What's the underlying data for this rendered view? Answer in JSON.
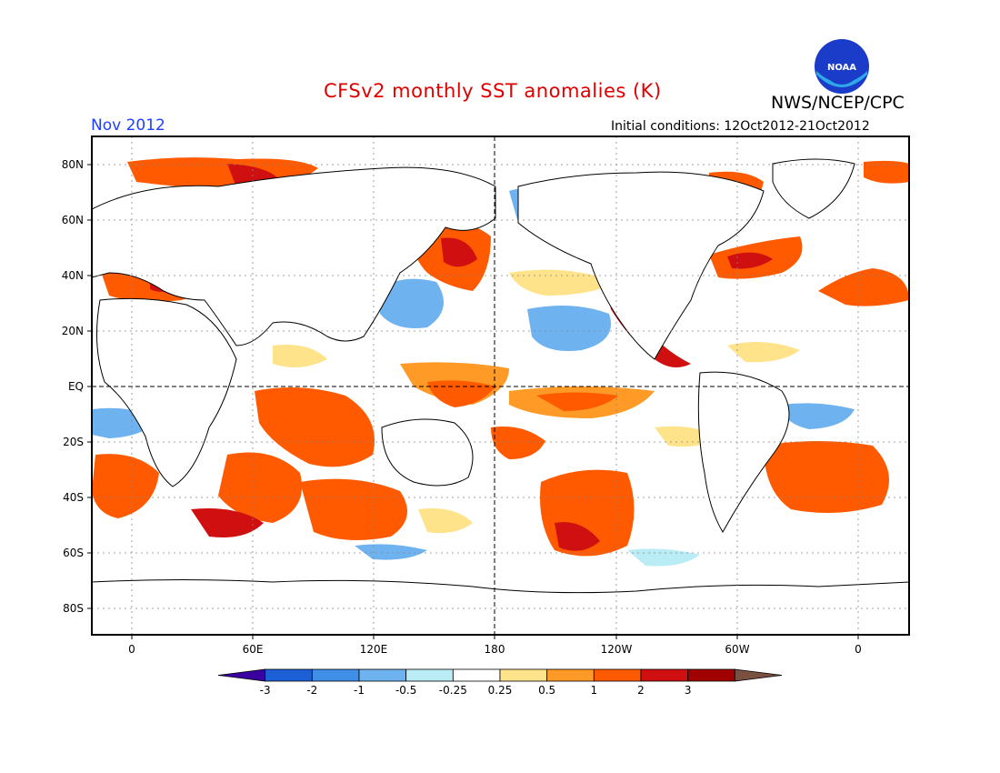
{
  "header": {
    "title": "CFSv2 monthly SST anomalies (K)",
    "month": "Nov 2012",
    "initial_conditions": "Initial conditions: 12Oct2012-21Oct2012",
    "agency": "NWS/NCEP/CPC",
    "logo_text": "NOAA"
  },
  "map": {
    "lat_ticks": [
      "80N",
      "60N",
      "40N",
      "20N",
      "EQ",
      "20S",
      "40S",
      "60S",
      "80S"
    ],
    "lon_ticks": [
      "0",
      "60E",
      "120E",
      "180",
      "120W",
      "60W",
      "0"
    ]
  },
  "colorbar": {
    "labels": [
      "-3",
      "-2",
      "-1",
      "-0.5",
      "-0.25",
      "0.25",
      "0.5",
      "1",
      "2",
      "3"
    ],
    "colors": [
      "#3a00a0",
      "#1c5fd6",
      "#3f8ee8",
      "#6fb2f0",
      "#b9ecf5",
      "#ffffff",
      "#ffe38a",
      "#ff9a26",
      "#ff5a00",
      "#d01010",
      "#a00000",
      "#7a5040"
    ]
  }
}
